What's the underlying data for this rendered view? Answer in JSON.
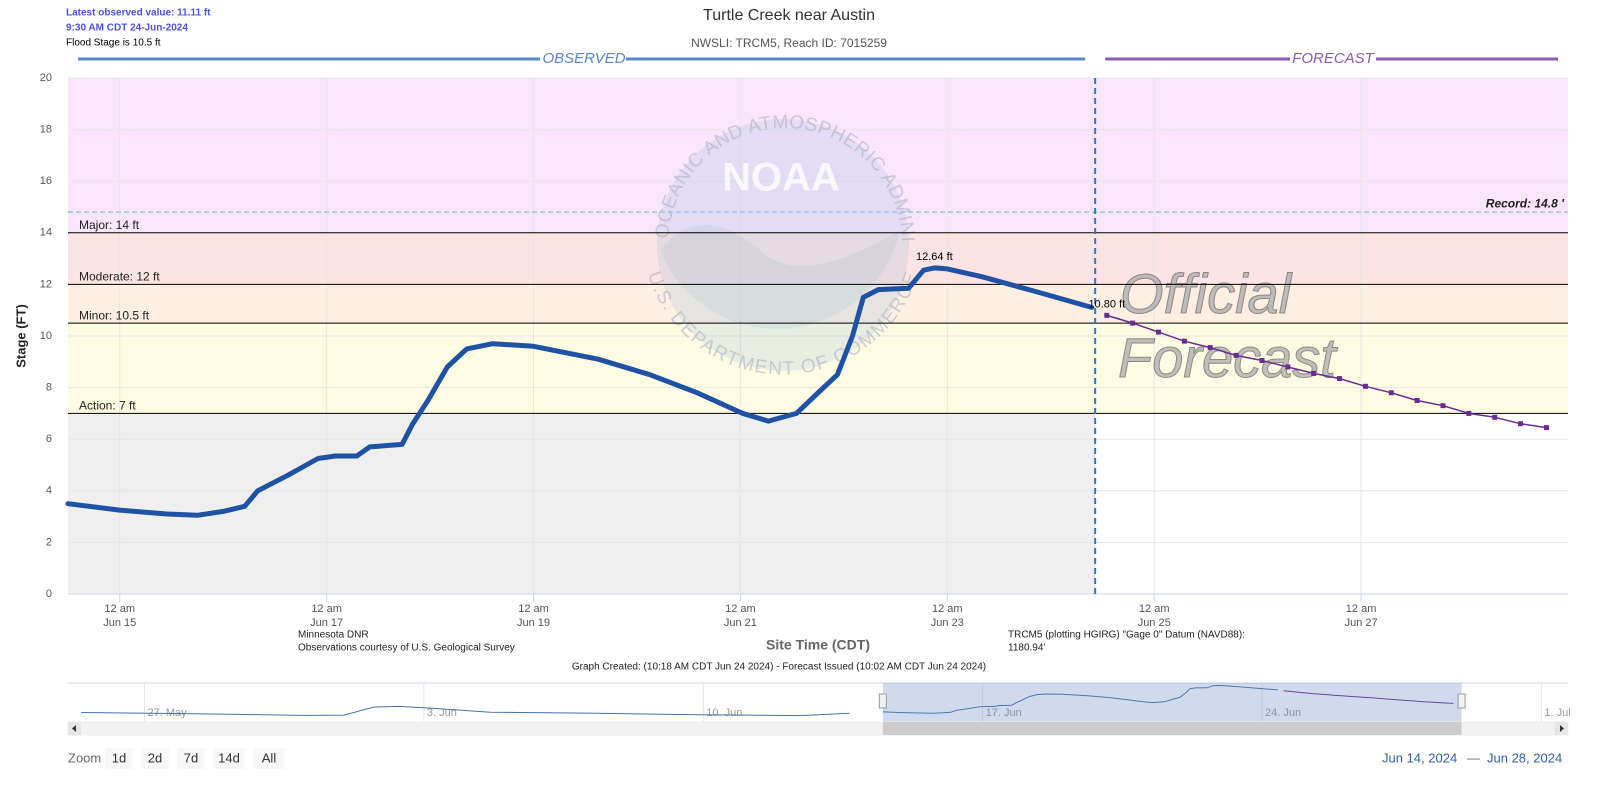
{
  "header": {
    "latest": "Latest observed value: 11.11 ft",
    "latest_time": "9:30 AM CDT 24-Jun-2024",
    "flood_stage": "Flood Stage is 10.5 ft"
  },
  "chart_data": {
    "type": "line",
    "title": "Turtle Creek near Austin",
    "subtitle": "NWSLI: TRCM5, Reach ID: 7015259",
    "observed_label": "OBSERVED",
    "forecast_label": "FORECAST",
    "y_label": "Stage (FT)",
    "x_label": "Site Time (CDT)",
    "xlim": [
      "2024-06-14T12:00",
      "2024-06-29T00:00"
    ],
    "ylim": [
      0,
      20
    ],
    "yticks": [
      0,
      2,
      4,
      6,
      8,
      10,
      12,
      14,
      16,
      18,
      20
    ],
    "grid": true,
    "xticks": [
      {
        "value": "2024-06-15T00:00",
        "label": "12 am Jun 15"
      },
      {
        "value": "2024-06-17T00:00",
        "label": "12 am Jun 17"
      },
      {
        "value": "2024-06-19T00:00",
        "label": "12 am Jun 19"
      },
      {
        "value": "2024-06-21T00:00",
        "label": "12 am Jun 21"
      },
      {
        "value": "2024-06-23T00:00",
        "label": "12 am Jun 23"
      },
      {
        "value": "2024-06-25T00:00",
        "label": "12 am Jun 25"
      },
      {
        "value": "2024-06-27T00:00",
        "label": "12 am Jun 27"
      }
    ],
    "now": "2024-06-24T10:18",
    "below_color": "#efefef",
    "thresholds": [
      {
        "label": "Action: 7 ft",
        "value": 7,
        "color": "#fefce3"
      },
      {
        "label": "Minor: 10.5 ft",
        "value": 10.5,
        "color": "#fdf0e3"
      },
      {
        "label": "Moderate: 12 ft",
        "value": 12,
        "color": "#fde4e4"
      },
      {
        "label": "Major: 14 ft",
        "value": 14,
        "color": "#fae6fb"
      }
    ],
    "record": {
      "label": "Record: 14.8 '",
      "value": 14.8,
      "color": "#8ec9ea"
    },
    "series": [
      {
        "name": "Observed",
        "color": "#1f52a5",
        "x": [
          "2024-06-14T12:00",
          "2024-06-15T00:00",
          "2024-06-15T11:00",
          "2024-06-15T18:00",
          "2024-06-16T00:00",
          "2024-06-16T05:00",
          "2024-06-16T08:00",
          "2024-06-16T15:00",
          "2024-06-16T22:00",
          "2024-06-17T02:00",
          "2024-06-17T07:00",
          "2024-06-17T10:00",
          "2024-06-17T17:30",
          "2024-06-17T20:00",
          "2024-06-17T23:30",
          "2024-06-18T04:00",
          "2024-06-18T08:30",
          "2024-06-18T14:30",
          "2024-06-19T00:00",
          "2024-06-19T15:00",
          "2024-06-20T03:00",
          "2024-06-20T14:00",
          "2024-06-21T00:30",
          "2024-06-21T06:30",
          "2024-06-21T13:00",
          "2024-06-21T18:00",
          "2024-06-21T22:30",
          "2024-06-22T02:00",
          "2024-06-22T04:30",
          "2024-06-22T08:00",
          "2024-06-22T15:00",
          "2024-06-22T18:30",
          "2024-06-22T21:00",
          "2024-06-23T00:00",
          "2024-06-23T08:00",
          "2024-06-23T21:00",
          "2024-06-24T09:30"
        ],
        "values": [
          3.5,
          3.25,
          3.1,
          3.05,
          3.2,
          3.4,
          4.0,
          4.6,
          5.25,
          5.35,
          5.35,
          5.7,
          5.8,
          6.6,
          7.5,
          8.8,
          9.5,
          9.7,
          9.6,
          9.1,
          8.5,
          7.8,
          7.0,
          6.7,
          7.0,
          7.8,
          8.5,
          10.0,
          11.5,
          11.8,
          11.85,
          12.55,
          12.64,
          12.6,
          12.3,
          11.7,
          11.11
        ]
      },
      {
        "name": "Forecast",
        "color": "#6a2c91",
        "x": [
          "2024-06-24T13:00",
          "2024-06-24T19:00",
          "2024-06-25T01:00",
          "2024-06-25T07:00",
          "2024-06-25T13:00",
          "2024-06-25T19:00",
          "2024-06-26T01:00",
          "2024-06-26T07:00",
          "2024-06-26T13:00",
          "2024-06-26T19:00",
          "2024-06-27T01:00",
          "2024-06-27T07:00",
          "2024-06-27T13:00",
          "2024-06-27T19:00",
          "2024-06-28T01:00",
          "2024-06-28T07:00",
          "2024-06-28T13:00",
          "2024-06-28T19:00"
        ],
        "values": [
          10.8,
          10.5,
          10.15,
          9.8,
          9.55,
          9.25,
          9.05,
          8.8,
          8.55,
          8.35,
          8.05,
          7.8,
          7.5,
          7.3,
          7.0,
          6.85,
          6.6,
          6.45
        ]
      }
    ],
    "annotations": [
      {
        "text": "12.64 ft",
        "x": "2024-06-22T21:00",
        "y": 12.64
      },
      {
        "text": "10.80 ft",
        "x": "2024-06-24T13:00",
        "y": 10.8
      }
    ]
  },
  "watermark": {
    "logo": "NOAA",
    "arc_top": "NATIONAL OCEANIC AND ATMOSPHERIC ADMINISTRATION",
    "arc_bottom": "U.S. DEPARTMENT OF COMMERCE",
    "official": "Official",
    "forecast": "Forecast"
  },
  "credits": [
    "Minnesota DNR",
    "Observations courtesy of U.S. Geological Survey"
  ],
  "datum": [
    "TRCM5 (plotting HGIRG) \"Gage 0\" Datum (NAVD88):",
    "1180.94'"
  ],
  "footer": "Graph Created: (10:18 AM CDT Jun 24 2024) - Forecast Issued (10:02 AM CDT Jun 24 2024)",
  "navigator": {
    "xlim": [
      "2024-05-25T02:00",
      "2024-07-01T16:00"
    ],
    "ylim": [
      0,
      13.5
    ],
    "xticks": [
      {
        "value": "2024-05-27T00:00",
        "label": "27. May"
      },
      {
        "value": "2024-06-03T00:00",
        "label": "3. Jun"
      },
      {
        "value": "2024-06-10T00:00",
        "label": "10. Jun"
      },
      {
        "value": "2024-06-17T00:00",
        "label": "17. Jun"
      },
      {
        "value": "2024-06-24T00:00",
        "label": "24. Jun"
      },
      {
        "value": "2024-07-01T00:00",
        "label": "1. Jul"
      }
    ],
    "x": [
      "2024-05-25T10:00",
      "2024-05-28T00:00",
      "2024-05-31T00:00",
      "2024-06-01T00:00",
      "2024-06-01T18:00",
      "2024-06-02T09:00",
      "2024-06-03T04:00",
      "2024-06-04T16:00",
      "2024-06-07T09:00",
      "2024-06-09T21:00",
      "2024-06-12T10:00",
      "2024-06-13T16:00"
    ],
    "values": [
      3.3,
      2.9,
      2.3,
      2.4,
      5.2,
      5.4,
      4.8,
      3.4,
      3.0,
      2.5,
      2.2,
      3.0
    ]
  },
  "zoom": {
    "label": "Zoom",
    "buttons": [
      "1d",
      "2d",
      "7d",
      "14d",
      "All"
    ]
  },
  "range": {
    "from": "Jun 14, 2024",
    "separator": "—",
    "to": "Jun 28, 2024"
  }
}
